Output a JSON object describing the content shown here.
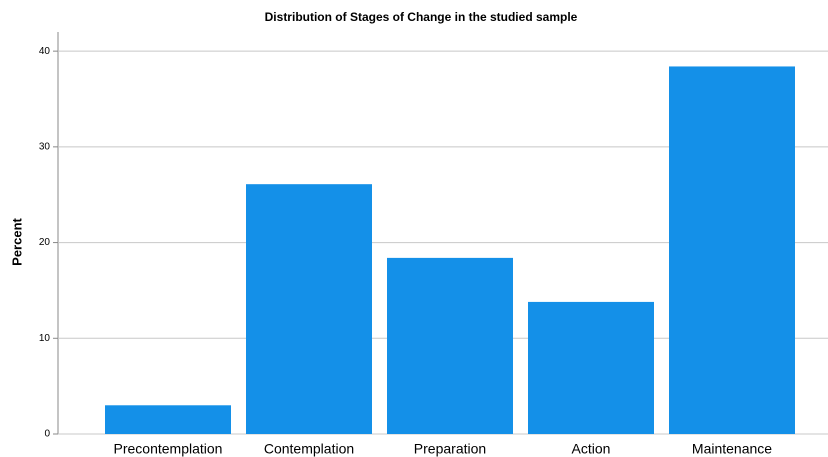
{
  "chart_data": {
    "type": "bar",
    "title": "Distribution of Stages of Change in the studied sample",
    "y_label": "Percent",
    "categories": [
      "Precontemplation",
      "Contemplation",
      "Preparation",
      "Action",
      "Maintenance"
    ],
    "values": [
      3.0,
      26.1,
      18.4,
      13.8,
      38.4
    ],
    "color": "#1490e8",
    "ylim": [
      0,
      42
    ],
    "yticks": [
      0,
      10,
      20,
      30,
      40
    ],
    "grid": true
  }
}
